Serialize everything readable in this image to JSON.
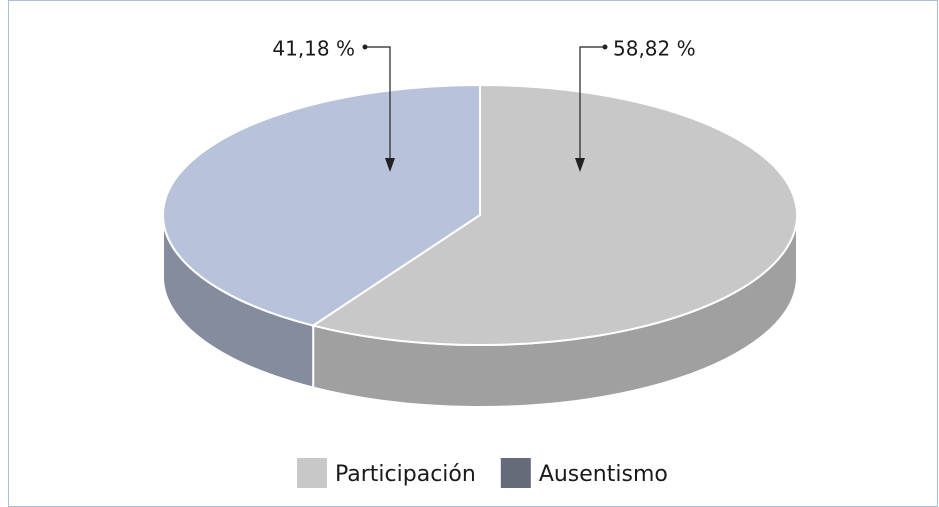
{
  "chart_data": {
    "type": "pie",
    "categories": [
      "Participación",
      "Ausentismo"
    ],
    "values": [
      58.82,
      41.18
    ],
    "value_labels": [
      "58,82 %",
      "41,18 %"
    ],
    "colors": [
      "#c8c8c9",
      "#b8c2da"
    ],
    "legend": "bottom"
  }
}
